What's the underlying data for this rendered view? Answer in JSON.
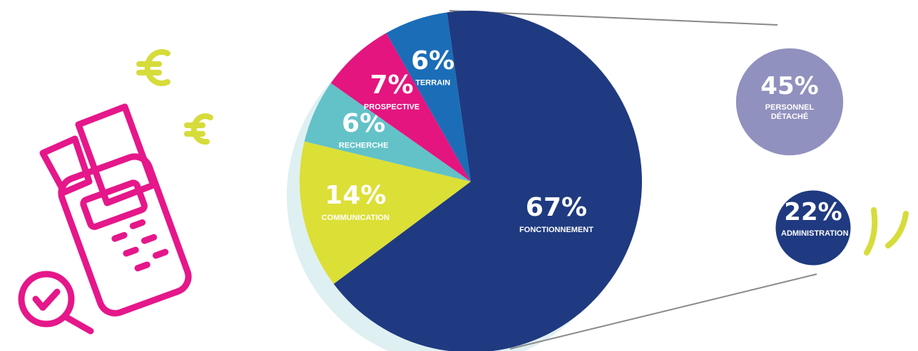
{
  "chart_data": [
    {
      "type": "pie",
      "categories": [
        "FONCTIONNEMENT",
        "COMMUNICATION",
        "RECHERCHE",
        "PROSPECTIVE",
        "TERRAIN"
      ],
      "values": [
        67,
        14,
        6,
        7,
        6
      ],
      "value_labels": [
        "67%",
        "14%",
        "6%",
        "7%",
        "6%"
      ],
      "colors": [
        "#1f3a80",
        "#dcdf36",
        "#62c2c8",
        "#e4157f",
        "#1b6db7"
      ]
    },
    {
      "type": "breakdown",
      "categories": [
        "PERSONNEL DÉTACHÉ",
        "ADMINISTRATION"
      ],
      "values": [
        45,
        22
      ],
      "value_labels": [
        "45%",
        "22%"
      ],
      "colors": [
        "#9191bf",
        "#1f3a80"
      ]
    }
  ]
}
